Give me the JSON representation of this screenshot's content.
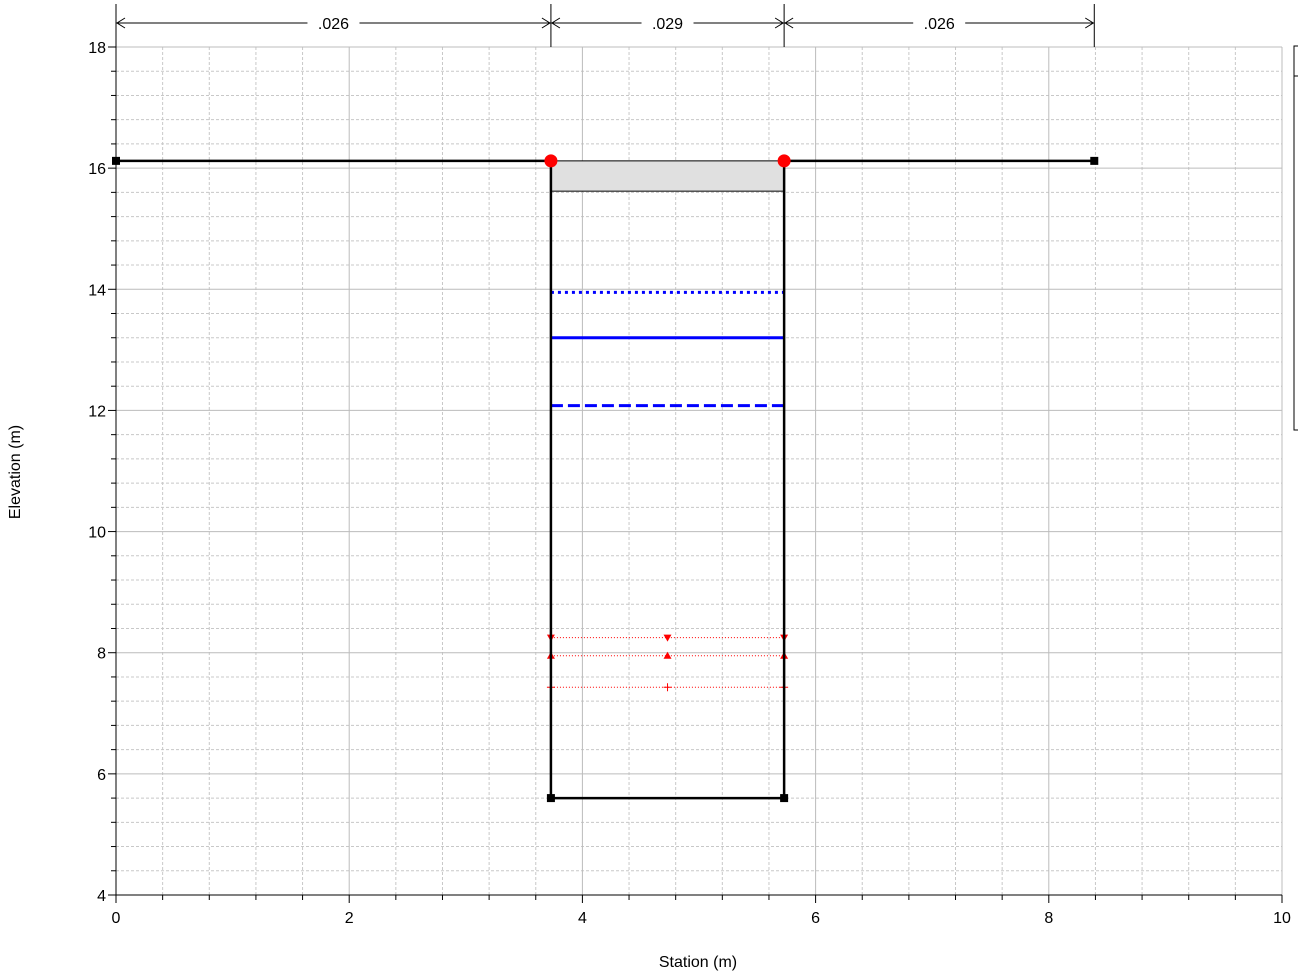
{
  "chart_data": {
    "type": "line",
    "xlabel": "Station (m)",
    "ylabel": "Elevation (m)",
    "xlim": [
      0,
      10
    ],
    "ylim": [
      4,
      18
    ],
    "x_ticks": [
      0,
      2,
      4,
      6,
      8,
      10
    ],
    "y_ticks": [
      4,
      6,
      8,
      10,
      12,
      14,
      16,
      18
    ],
    "grid": true,
    "manning_n": [
      {
        "label": ".026",
        "x_start": 0,
        "x_end": 3.73
      },
      {
        "label": ".029",
        "x_start": 3.73,
        "x_end": 5.73
      },
      {
        "label": ".026",
        "x_start": 5.73,
        "x_end": 8.39
      }
    ],
    "ground": {
      "left_overbank": [
        [
          0,
          16.12
        ],
        [
          3.73,
          16.12
        ]
      ],
      "channel": [
        [
          3.73,
          16.12
        ],
        [
          3.73,
          5.6
        ],
        [
          5.73,
          5.6
        ],
        [
          5.73,
          16.12
        ]
      ],
      "right_overbank": [
        [
          5.73,
          16.12
        ],
        [
          8.39,
          16.12
        ]
      ],
      "ground_points": [
        [
          0,
          16.12
        ],
        [
          3.73,
          5.6
        ],
        [
          5.73,
          5.6
        ],
        [
          8.39,
          16.12
        ]
      ],
      "bank_stations": [
        [
          3.73,
          16.12
        ],
        [
          5.73,
          16.12
        ]
      ]
    },
    "deck": {
      "x_start": 3.73,
      "x_end": 5.73,
      "top": 16.12,
      "bottom": 15.62
    },
    "water_surfaces": [
      {
        "style": "dotted",
        "color": "#0000ff",
        "y": 13.95,
        "x_start": 3.73,
        "x_end": 5.73
      },
      {
        "style": "solid",
        "color": "#0000ff",
        "y": 13.2,
        "x_start": 3.73,
        "x_end": 5.73
      },
      {
        "style": "dashed",
        "color": "#0000ff",
        "y": 12.08,
        "x_start": 3.73,
        "x_end": 5.73
      }
    ],
    "red_levels": [
      {
        "marker": "triangle-down",
        "color": "#ff0000",
        "y": 8.25,
        "x_start": 3.73,
        "x_end": 5.73
      },
      {
        "marker": "triangle-up",
        "color": "#ff0000",
        "y": 7.95,
        "x_start": 3.73,
        "x_end": 5.73
      },
      {
        "marker": "plus",
        "color": "#ff0000",
        "y": 7.43,
        "x_start": 3.73,
        "x_end": 5.73
      }
    ]
  }
}
